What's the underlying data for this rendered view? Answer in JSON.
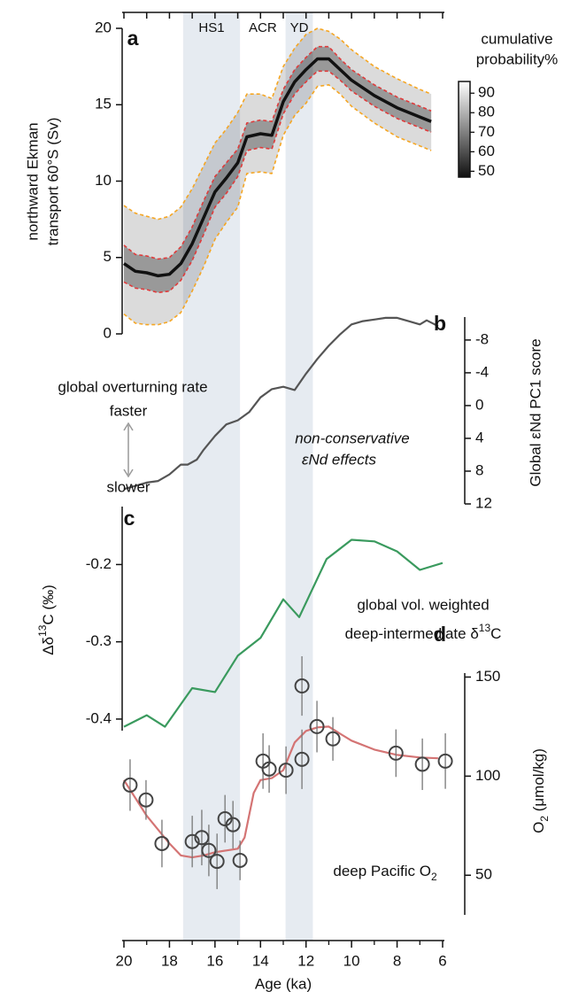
{
  "intervals": [
    {
      "label": "HS1",
      "from": 17.4,
      "to": 14.9,
      "shaded": true
    },
    {
      "label": "ACR",
      "from": 14.9,
      "to": 12.9,
      "shaded": false
    },
    {
      "label": "YD",
      "from": 12.9,
      "to": 11.7,
      "shaded": true
    }
  ],
  "interval_color": "#e6ebf1",
  "chart_data": [
    {
      "type": "line",
      "label": "a",
      "ylabel": [
        "northward Ekman",
        "transport 60°S (Sv)"
      ],
      "yaxis_side": "left",
      "xlim": [
        20,
        6
      ],
      "top_ticks": [
        20,
        19,
        18,
        17,
        16,
        15,
        14,
        13,
        12,
        11,
        10,
        9,
        8,
        7,
        6
      ],
      "ylim": [
        0,
        20
      ],
      "yticks": [
        0,
        5,
        10,
        15,
        20
      ],
      "x": [
        20,
        19.5,
        19,
        18.5,
        18,
        17.5,
        17,
        16.5,
        16,
        15.5,
        15,
        14.6,
        14,
        13.5,
        13,
        12.5,
        12,
        11.5,
        11,
        10.5,
        10,
        9,
        8,
        7,
        6.5
      ],
      "series": [
        {
          "color": "#111111",
          "dashed": false,
          "values": [
            4.6,
            4.1,
            4.0,
            3.8,
            3.9,
            4.6,
            5.9,
            7.6,
            9.3,
            10.2,
            11.2,
            12.9,
            13.1,
            13.0,
            15.2,
            16.5,
            17.3,
            18.0,
            18.0,
            17.3,
            16.6,
            15.6,
            14.8,
            14.2,
            13.9
          ]
        },
        {
          "color": "#e03a3a",
          "dashed": true,
          "values": [
            3.4,
            3.0,
            2.9,
            2.7,
            2.8,
            3.5,
            4.8,
            6.5,
            8.3,
            9.2,
            10.3,
            12.0,
            12.2,
            12.1,
            14.4,
            15.7,
            16.5,
            17.2,
            17.2,
            16.6,
            15.9,
            14.9,
            14.1,
            13.5,
            13.2
          ]
        },
        {
          "color": "#e03a3a",
          "dashed": true,
          "values": [
            5.8,
            5.2,
            5.1,
            4.9,
            5.0,
            5.7,
            7.0,
            8.7,
            10.3,
            11.2,
            12.1,
            13.8,
            14.0,
            13.9,
            16.0,
            17.3,
            18.1,
            18.8,
            18.8,
            18.0,
            17.3,
            16.3,
            15.5,
            14.9,
            14.6
          ]
        },
        {
          "color": "#f5a623",
          "dashed": true,
          "values": [
            1.3,
            0.7,
            0.6,
            0.6,
            0.8,
            1.4,
            2.8,
            4.4,
            6.2,
            7.3,
            8.3,
            10.5,
            10.6,
            10.5,
            13.0,
            14.3,
            15.1,
            16.2,
            16.3,
            15.7,
            14.9,
            13.8,
            12.9,
            12.3,
            12.0
          ]
        },
        {
          "color": "#f5a623",
          "dashed": true,
          "values": [
            8.4,
            7.9,
            7.7,
            7.5,
            7.7,
            8.3,
            9.5,
            11.0,
            12.5,
            13.4,
            14.5,
            15.7,
            15.7,
            15.4,
            17.5,
            18.7,
            19.6,
            20.0,
            19.8,
            19.3,
            18.6,
            17.5,
            16.7,
            16.0,
            15.7
          ]
        }
      ],
      "colorbar": {
        "title": [
          "cumulative",
          "probability%"
        ],
        "lim": [
          47,
          96
        ],
        "ticks": [
          50,
          60,
          70,
          80,
          90
        ]
      }
    },
    {
      "type": "line",
      "label": "b",
      "ylabel": "Global εNd PC1 score",
      "yaxis_side": "right",
      "xlim": [
        20,
        6
      ],
      "ylim": [
        12,
        -10.8
      ],
      "yticks": [
        -8,
        -4,
        0,
        4,
        8,
        12
      ],
      "x": [
        20,
        19,
        18.5,
        18,
        17.5,
        17.2,
        16.8,
        16.5,
        16,
        15.5,
        15,
        14.5,
        14,
        13.5,
        13,
        12.5,
        12,
        11.5,
        11,
        10.5,
        10,
        9.5,
        9,
        8.5,
        8,
        7.5,
        7,
        6.7,
        6.2
      ],
      "series": [
        {
          "color": "#555555",
          "dashed": false,
          "values": [
            10.2,
            9.4,
            9.2,
            8.4,
            7.2,
            7.2,
            6.6,
            5.4,
            3.7,
            2.3,
            1.8,
            0.8,
            -1.0,
            -2.0,
            -2.3,
            -1.9,
            -3.9,
            -5.7,
            -7.3,
            -8.7,
            -9.9,
            -10.3,
            -10.5,
            -10.7,
            -10.7,
            -10.3,
            -9.9,
            -10.4,
            -9.7
          ]
        }
      ],
      "rate_label": "global overturning rate",
      "faster": "faster",
      "slower": "slower",
      "note": [
        "non-conservative",
        "εNd effects"
      ]
    },
    {
      "type": "line",
      "label": "c",
      "ylabel": [
        "Δδ",
        "13",
        "C (‰)"
      ],
      "yaxis_side": "left",
      "xlim": [
        20,
        6
      ],
      "ylim": [
        -0.415,
        -0.125
      ],
      "yticks": [
        -0.2,
        -0.3,
        -0.4
      ],
      "x": [
        20,
        19,
        18.2,
        17,
        16,
        15,
        14,
        13,
        12.3,
        11.1,
        10,
        9,
        8,
        7,
        6
      ],
      "series": [
        {
          "color": "#3a9a5e",
          "dashed": false,
          "values": [
            -0.41,
            -0.395,
            -0.41,
            -0.36,
            -0.365,
            -0.318,
            -0.295,
            -0.245,
            -0.268,
            -0.193,
            -0.168,
            -0.17,
            -0.183,
            -0.207,
            -0.198
          ]
        }
      ],
      "note": [
        "global vol. weighted",
        "deep-intermediate δ",
        "13",
        "C"
      ]
    },
    {
      "type": "scatter",
      "label": "d",
      "ylabel": [
        "O",
        "2",
        " (μmol/kg)"
      ],
      "yaxis_side": "right",
      "xlim": [
        20,
        6
      ],
      "ylim": [
        30,
        152
      ],
      "yticks": [
        50,
        100,
        150
      ],
      "xlabel": "Age (ka)",
      "xticks": [
        20,
        18,
        16,
        14,
        12,
        10,
        8,
        6
      ],
      "xminor_ticks": [
        19,
        17,
        15,
        13,
        11,
        9,
        7
      ],
      "series": [
        {
          "color": "#d47474",
          "dashed": false,
          "x": [
            20,
            19,
            18,
            17.5,
            17,
            16.5,
            16,
            15.5,
            15,
            14.7,
            14.3,
            14,
            13.5,
            13,
            12.5,
            12,
            11.5,
            11,
            10.5,
            10,
            9,
            8,
            7,
            6.2
          ],
          "values": [
            98,
            80,
            66,
            60,
            59,
            60,
            61.6,
            62.5,
            63.4,
            69,
            91.5,
            98,
            99,
            103,
            117,
            122.8,
            124.6,
            125,
            121.4,
            117.9,
            113.4,
            110.7,
            109.4,
            109
          ]
        }
      ],
      "points": {
        "color": "#444444",
        "x": [
          19.73,
          19.03,
          18.33,
          17.0,
          16.58,
          16.27,
          15.91,
          15.56,
          15.21,
          14.9,
          13.89,
          13.62,
          12.88,
          12.18,
          12.18,
          11.52,
          10.82,
          8.05,
          6.89,
          5.88
        ],
        "values": [
          95.5,
          88,
          66,
          67,
          69,
          62.5,
          57,
          78.5,
          75.5,
          57.5,
          107.6,
          103.6,
          103,
          145.5,
          108.5,
          125,
          118.8,
          111.6,
          106,
          107.6
        ],
        "errors": [
          13,
          10,
          12,
          13,
          14,
          13,
          14,
          12,
          12,
          10,
          14,
          12,
          12,
          15,
          15,
          13,
          11,
          12,
          13,
          14
        ]
      },
      "note": [
        "deep Pacific O",
        "2"
      ]
    }
  ]
}
